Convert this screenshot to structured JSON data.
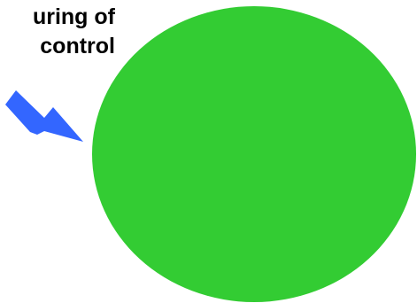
{
  "caption": {
    "line1": "uring of",
    "line2": "control"
  },
  "colors": {
    "circle_fill": "#33CC33",
    "arrow_fill": "#3366FF",
    "text": "#000000"
  },
  "icons": {
    "arrow": "arrow-down-right-icon",
    "shape": "green-circle"
  }
}
